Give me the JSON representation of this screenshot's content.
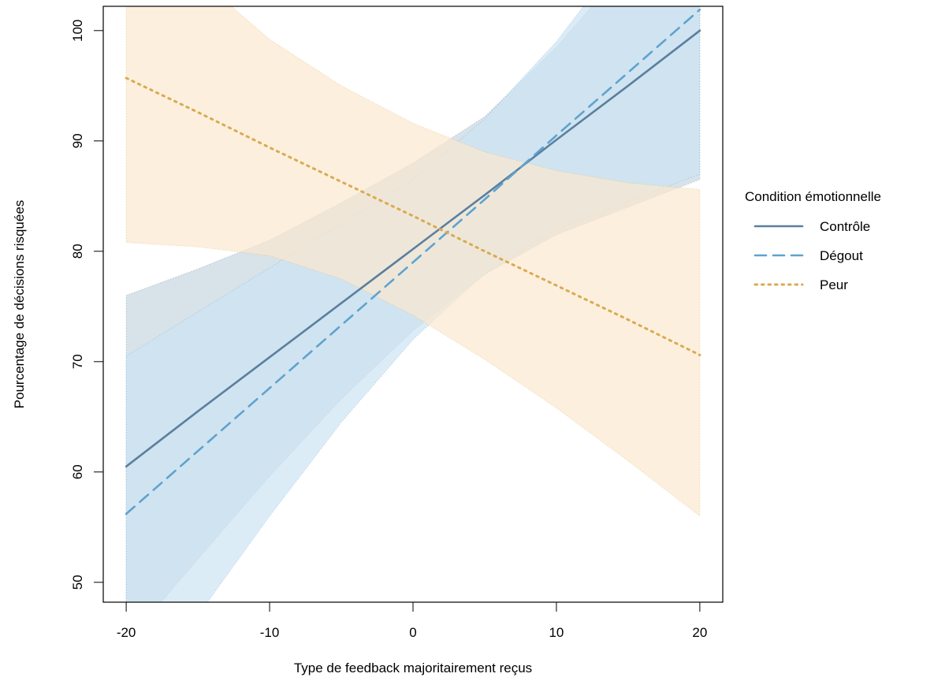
{
  "chart_data": {
    "type": "line",
    "title": "",
    "xlabel": "Type de feedback majoritairement reçus",
    "ylabel": "Pourcentage de décisions risquées",
    "xlim": [
      -21.6,
      21.6
    ],
    "ylim": [
      48.2,
      102.2
    ],
    "xticks": [
      -20,
      -10,
      0,
      10,
      20
    ],
    "yticks": [
      50,
      60,
      70,
      80,
      90,
      100
    ],
    "grid": false,
    "legend": {
      "title": "Condition émotionnelle",
      "position": "right"
    },
    "series": [
      {
        "name": "Contrôle",
        "linestyle": "solid",
        "color": "#5b7f9e",
        "fill_color": "#c7d6e0",
        "x": [
          -20,
          -15,
          -10,
          -5,
          0,
          5,
          10,
          15,
          20
        ],
        "y": [
          60.5,
          65.5,
          70.4,
          75.3,
          80.2,
          85.1,
          90.1,
          95.0,
          100.0
        ],
        "lower": [
          44.5,
          52.1,
          59.6,
          66.6,
          72.8,
          77.9,
          81.5,
          84.0,
          86.5
        ],
        "upper": [
          76.0,
          78.4,
          81.0,
          84.4,
          88.0,
          92.2,
          98.5,
          106.0,
          114.0
        ]
      },
      {
        "name": "Dégout",
        "linestyle": "dashed",
        "color": "#5ea3cf",
        "fill_color": "#cde4f2",
        "x": [
          -20,
          -15,
          -10,
          -5,
          0,
          5,
          10,
          15,
          20
        ],
        "y": [
          56.2,
          61.9,
          67.6,
          73.3,
          79.0,
          84.7,
          90.5,
          96.2,
          101.9
        ],
        "lower": [
          38.0,
          47.0,
          56.0,
          64.5,
          72.0,
          78.0,
          82.0,
          84.5,
          87.0
        ],
        "upper": [
          70.5,
          74.5,
          78.5,
          82.5,
          86.5,
          92.0,
          99.0,
          107.5,
          116.0
        ]
      },
      {
        "name": "Peur",
        "linestyle": "dotted",
        "color": "#d9aa52",
        "fill_color": "#fbe8cf",
        "x": [
          -20,
          -15,
          -10,
          -5,
          0,
          5,
          10,
          15,
          20
        ],
        "y": [
          95.7,
          92.6,
          89.4,
          86.3,
          83.2,
          80.0,
          76.9,
          73.8,
          70.6
        ],
        "lower": [
          80.8,
          80.4,
          79.6,
          77.5,
          74.2,
          70.2,
          65.8,
          61.0,
          56.0
        ],
        "upper": [
          110.5,
          104.8,
          99.2,
          95.0,
          91.6,
          89.0,
          87.3,
          86.2,
          85.6
        ]
      }
    ]
  }
}
